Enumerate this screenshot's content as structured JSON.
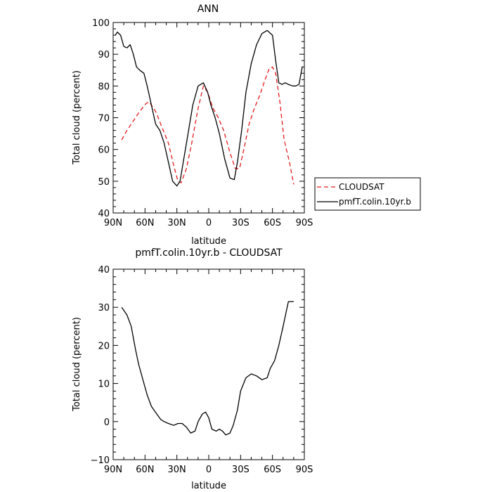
{
  "chart_data": [
    {
      "type": "line",
      "title": "ANN",
      "xlabel": "latitude",
      "ylabel": "Total cloud (percent)",
      "xlim": [
        90,
        -90
      ],
      "ylim": [
        40,
        100
      ],
      "x_ticks": [
        90,
        60,
        30,
        0,
        -30,
        -60,
        -90
      ],
      "x_tick_labels": [
        "90N",
        "60N",
        "30N",
        "0",
        "30S",
        "60S",
        "90S"
      ],
      "y_ticks": [
        40,
        50,
        60,
        70,
        80,
        90,
        100
      ],
      "y_tick_labels": [
        "40",
        "50",
        "60",
        "70",
        "80",
        "90",
        "100"
      ],
      "legend_position": "right",
      "series": [
        {
          "name": "CLOUDSAT",
          "color": "#e41a1c",
          "dash": true,
          "x": [
            82,
            77,
            71,
            65,
            59,
            56,
            50,
            44,
            38,
            33,
            29,
            26,
            21,
            16,
            10,
            5,
            1,
            -4,
            -9,
            -14,
            -20,
            -25,
            -29,
            -33,
            -38,
            -43,
            -48,
            -53,
            -57,
            -60,
            -63,
            -67,
            -71,
            -76,
            -80
          ],
          "y": [
            63,
            66,
            69,
            72,
            74.5,
            75,
            72,
            67,
            62,
            55,
            50,
            49.5,
            54,
            62,
            73,
            80,
            78,
            73,
            70,
            66,
            59,
            54,
            54,
            60,
            68,
            73,
            77,
            82,
            85.5,
            86,
            84,
            75,
            63,
            56,
            49
          ]
        },
        {
          "name": "pmfT.colin.10yr.b",
          "color": "#000000",
          "dash": false,
          "x": [
            88,
            86,
            83,
            80,
            77,
            74,
            71,
            68,
            65,
            61,
            58,
            54,
            50,
            46,
            42,
            38,
            34,
            30,
            27,
            24,
            20,
            15,
            10,
            5,
            1,
            -2,
            -6,
            -10,
            -15,
            -20,
            -24,
            -27,
            -31,
            -35,
            -40,
            -45,
            -50,
            -55,
            -60,
            -63,
            -66,
            -69,
            -72,
            -75,
            -79,
            -82,
            -85,
            -88
          ],
          "y": [
            96,
            97,
            96,
            92.5,
            92,
            93,
            90,
            86,
            85,
            84,
            80,
            74,
            68,
            66,
            62,
            56,
            50,
            48.5,
            50,
            56,
            64,
            74,
            80,
            81,
            78,
            74,
            70,
            65,
            57,
            51,
            50.5,
            56,
            66,
            78,
            87,
            93,
            96.5,
            97.5,
            96,
            88,
            81,
            80.5,
            81,
            80.5,
            80,
            80,
            80.5,
            86
          ]
        }
      ]
    },
    {
      "type": "line",
      "title": "pmfT.colin.10yr.b - CLOUDSAT",
      "xlabel": "latitude",
      "ylabel": "Total cloud (percent)",
      "xlim": [
        90,
        -90
      ],
      "ylim": [
        -10,
        40
      ],
      "x_ticks": [
        90,
        60,
        30,
        0,
        -30,
        -60,
        -90
      ],
      "x_tick_labels": [
        "90N",
        "60N",
        "30N",
        "0",
        "30S",
        "60S",
        "90S"
      ],
      "y_ticks": [
        -10,
        0,
        10,
        20,
        30,
        40
      ],
      "y_tick_labels": [
        "−10",
        "0",
        "10",
        "20",
        "30",
        "40"
      ],
      "series": [
        {
          "name": "pmfT.colin.10yr.b - CLOUDSAT",
          "color": "#000000",
          "dash": false,
          "x": [
            82,
            77,
            73,
            69,
            66,
            61,
            58,
            54,
            49,
            45,
            42,
            38,
            33,
            29,
            25,
            21,
            17,
            13,
            10,
            6,
            3,
            0,
            -3,
            -7,
            -10,
            -13,
            -16,
            -20,
            -23,
            -27,
            -30,
            -35,
            -40,
            -45,
            -50,
            -55,
            -58,
            -62,
            -66,
            -70,
            -75,
            -80
          ],
          "y": [
            30,
            28,
            25,
            19,
            15,
            10,
            7,
            4,
            2,
            0.5,
            0,
            -0.5,
            -1,
            -0.5,
            -0.5,
            -1.5,
            -3,
            -2.5,
            0,
            2,
            2.5,
            1,
            -2,
            -2.5,
            -2,
            -2.5,
            -3.5,
            -3,
            -1,
            3,
            8,
            11.5,
            12.5,
            12,
            11,
            11.5,
            14,
            16,
            20,
            25,
            31.5,
            31.5
          ]
        }
      ]
    }
  ]
}
